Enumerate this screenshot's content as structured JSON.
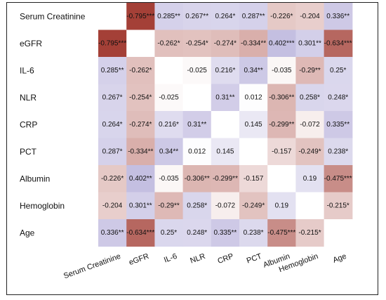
{
  "chart_data": {
    "type": "heatmap",
    "row_labels": [
      "Serum Creatinine",
      "eGFR",
      "IL-6",
      "NLR",
      "CRP",
      "PCT",
      "Albumin",
      "Hemoglobin",
      "Age"
    ],
    "col_labels": [
      "Serum Creatinine",
      "eGFR",
      "IL-6",
      "NLR",
      "CRP",
      "PCT",
      "Albumin",
      "Hemoglobin",
      "Age"
    ],
    "values": [
      [
        null,
        -0.795,
        0.285,
        0.267,
        0.264,
        0.287,
        -0.226,
        -0.204,
        0.336
      ],
      [
        -0.795,
        null,
        -0.262,
        -0.254,
        -0.274,
        -0.334,
        0.402,
        0.301,
        -0.634
      ],
      [
        0.285,
        -0.262,
        null,
        -0.025,
        0.216,
        0.34,
        -0.035,
        -0.29,
        0.25
      ],
      [
        0.267,
        -0.254,
        -0.025,
        null,
        0.31,
        0.012,
        -0.306,
        0.258,
        0.248
      ],
      [
        0.264,
        -0.274,
        0.216,
        0.31,
        null,
        0.145,
        -0.299,
        -0.072,
        0.335
      ],
      [
        0.287,
        -0.334,
        0.34,
        0.012,
        0.145,
        null,
        -0.157,
        -0.249,
        0.238
      ],
      [
        -0.226,
        0.402,
        -0.035,
        -0.306,
        -0.299,
        -0.157,
        null,
        0.19,
        -0.475
      ],
      [
        -0.204,
        0.301,
        -0.29,
        0.258,
        -0.072,
        -0.249,
        0.19,
        null,
        -0.215
      ],
      [
        0.336,
        -0.634,
        0.25,
        0.248,
        0.335,
        0.238,
        -0.475,
        -0.215,
        null
      ]
    ],
    "labels": [
      [
        "",
        "-0.795***",
        "0.285**",
        "0.267**",
        "0.264*",
        "0.287**",
        "-0.226*",
        "-0.204",
        "0.336**"
      ],
      [
        "-0.795***",
        "",
        "-0.262*",
        "-0.254*",
        "-0.274*",
        "-0.334**",
        "0.402***",
        "0.301**",
        "-0.634***"
      ],
      [
        "0.285**",
        "-0.262*",
        "",
        "-0.025",
        "0.216*",
        "0.34**",
        "-0.035",
        "-0.29**",
        "0.25*"
      ],
      [
        "0.267*",
        "-0.254*",
        "-0.025",
        "",
        "0.31**",
        "0.012",
        "-0.306**",
        "0.258*",
        "0.248*"
      ],
      [
        "0.264*",
        "-0.274*",
        "0.216*",
        "0.31**",
        "",
        "0.145",
        "-0.299**",
        "-0.072",
        "0.335**"
      ],
      [
        "0.287*",
        "-0.334**",
        "0.34**",
        "0.012",
        "0.145",
        "",
        "-0.157",
        "-0.249*",
        "0.238*"
      ],
      [
        "-0.226*",
        "0.402**",
        "-0.035",
        "-0.306**",
        "-0.299**",
        "-0.157",
        "",
        "0.19",
        "-0.475***"
      ],
      [
        "-0.204",
        "0.301**",
        "-0.29**",
        "0.258*",
        "-0.072",
        "-0.249*",
        "0.19",
        "",
        "-0.215*"
      ],
      [
        "0.336**",
        "-0.634***",
        "0.25*",
        "0.248*",
        "0.335**",
        "0.238*",
        "-0.475***",
        "-0.215*",
        ""
      ]
    ],
    "colors": {
      "positive": "#8a7fc4",
      "negative": "#a33f36",
      "neutral": "#ffffff"
    }
  }
}
